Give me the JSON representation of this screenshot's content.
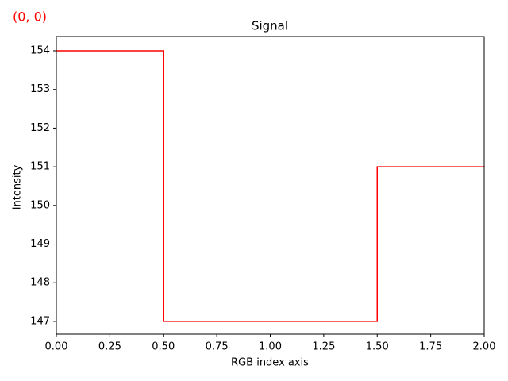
{
  "chart_data": {
    "type": "step",
    "step": "mid",
    "title": "Signal",
    "annotation": "(0, 0)",
    "annotation_color": "#ff0000",
    "x_label": "RGB index axis",
    "y_label": "Intensity",
    "x": [
      0,
      1,
      2
    ],
    "series": [
      {
        "name": "Signal",
        "color": "#ff0000",
        "values": [
          154,
          147,
          151
        ]
      }
    ],
    "xlim": [
      0,
      2
    ],
    "ylim": [
      146.67,
      154.37
    ],
    "xticks": [
      {
        "value": 0,
        "label": "0.00"
      },
      {
        "value": 0.25,
        "label": "0.25"
      },
      {
        "value": 0.5,
        "label": "0.50"
      },
      {
        "value": 0.75,
        "label": "0.75"
      },
      {
        "value": 1,
        "label": "1.00"
      },
      {
        "value": 1.25,
        "label": "1.25"
      },
      {
        "value": 1.5,
        "label": "1.50"
      },
      {
        "value": 1.75,
        "label": "1.75"
      },
      {
        "value": 2,
        "label": "2.00"
      }
    ],
    "yticks": [
      147,
      148,
      149,
      150,
      151,
      152,
      153,
      154
    ]
  }
}
